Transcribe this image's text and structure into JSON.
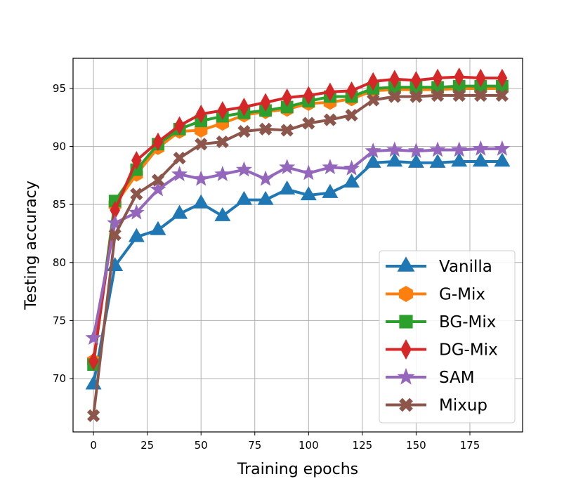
{
  "chart_data": {
    "type": "line",
    "title": "",
    "xlabel": "Training epochs",
    "ylabel": "Testing accuracy",
    "xlim": [
      -9.5,
      199.5
    ],
    "ylim": [
      65.4,
      97.6
    ],
    "xticks": [
      0,
      25,
      50,
      75,
      100,
      125,
      150,
      175
    ],
    "yticks": [
      70,
      75,
      80,
      85,
      90,
      95
    ],
    "xtick_labels": [
      "0",
      "25",
      "50",
      "75",
      "100",
      "125",
      "150",
      "175"
    ],
    "ytick_labels": [
      "70",
      "75",
      "80",
      "85",
      "90",
      "95"
    ],
    "grid": true,
    "legend_position": "lower-right",
    "x": [
      0,
      10,
      20,
      30,
      40,
      50,
      60,
      70,
      80,
      90,
      100,
      110,
      120,
      130,
      140,
      150,
      160,
      170,
      180,
      190
    ],
    "series": [
      {
        "name": "Vanilla",
        "color": "#1f77b4",
        "marker": "triangle",
        "values": [
          69.5,
          79.7,
          82.2,
          82.8,
          84.2,
          85.1,
          84.0,
          85.4,
          85.4,
          86.3,
          85.8,
          86.0,
          86.9,
          88.6,
          88.7,
          88.6,
          88.6,
          88.7,
          88.7,
          88.7
        ]
      },
      {
        "name": "G-Mix",
        "color": "#ff7f0e",
        "marker": "hexagon",
        "values": [
          71.5,
          85.0,
          87.6,
          89.9,
          91.3,
          91.4,
          92.0,
          92.7,
          93.0,
          93.2,
          93.7,
          93.8,
          94.1,
          94.8,
          94.9,
          94.9,
          94.9,
          95.0,
          95.0,
          95.0
        ]
      },
      {
        "name": "BG-Mix",
        "color": "#2ca02c",
        "marker": "square",
        "values": [
          71.2,
          85.3,
          88.0,
          90.2,
          91.5,
          92.2,
          92.6,
          92.9,
          93.1,
          93.4,
          93.9,
          94.3,
          94.3,
          95.0,
          95.1,
          95.1,
          95.1,
          95.2,
          95.2,
          95.2
        ]
      },
      {
        "name": "DG-Mix",
        "color": "#d62728",
        "marker": "diamond",
        "values": [
          71.5,
          84.5,
          88.8,
          90.4,
          91.8,
          92.8,
          93.1,
          93.4,
          93.8,
          94.2,
          94.4,
          94.7,
          94.8,
          95.6,
          95.8,
          95.7,
          95.9,
          96.0,
          95.9,
          95.9
        ]
      },
      {
        "name": "SAM",
        "color": "#9467bd",
        "marker": "star",
        "values": [
          73.5,
          83.4,
          84.3,
          86.3,
          87.6,
          87.2,
          87.6,
          88.0,
          87.2,
          88.2,
          87.7,
          88.2,
          88.1,
          89.6,
          89.7,
          89.6,
          89.7,
          89.7,
          89.8,
          89.8
        ]
      },
      {
        "name": "Mixup",
        "color": "#8c564b",
        "marker": "x",
        "values": [
          66.8,
          82.4,
          85.9,
          87.1,
          89.0,
          90.2,
          90.4,
          91.3,
          91.5,
          91.4,
          92.0,
          92.3,
          92.7,
          94.0,
          94.3,
          94.3,
          94.4,
          94.4,
          94.4,
          94.4
        ]
      }
    ]
  }
}
